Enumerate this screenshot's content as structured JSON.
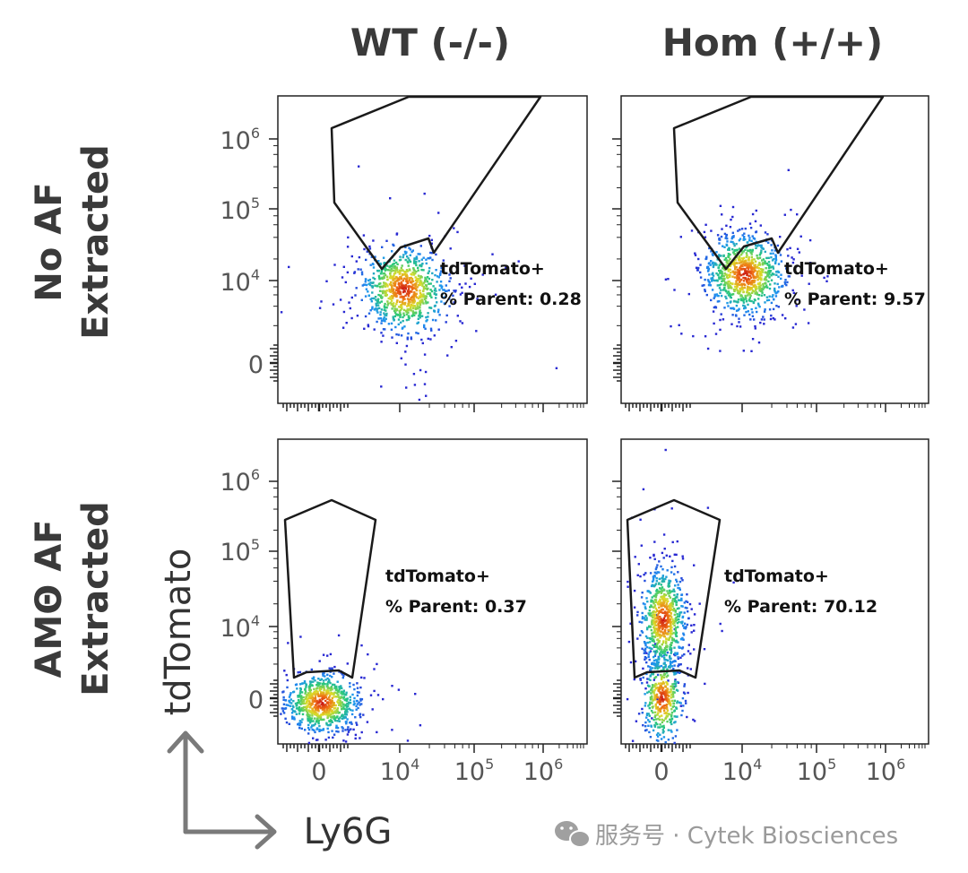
{
  "columns": [
    "WT (-/-)",
    "Hom (+/+)"
  ],
  "rows": [
    {
      "line1": "No AF",
      "line2": "Extracted"
    },
    {
      "line1": "AMΘ AF",
      "line2": "Extracted"
    }
  ],
  "axes": {
    "y_label": "tdTomato",
    "x_label": "Ly6G",
    "x_ticks": [
      {
        "label": "0",
        "exp": ""
      },
      {
        "label": "10",
        "exp": "4"
      },
      {
        "label": "10",
        "exp": "5"
      },
      {
        "label": "10",
        "exp": "6"
      }
    ],
    "y_ticks": [
      {
        "label": "10",
        "exp": "6"
      },
      {
        "label": "10",
        "exp": "5"
      },
      {
        "label": "10",
        "exp": "4"
      },
      {
        "label": "0",
        "exp": ""
      }
    ]
  },
  "watermark": {
    "text": "服务号 · Cytek Biosciences"
  },
  "colors": {
    "axis": "#222222",
    "gate": "#1a1a1a",
    "label": "#3a3a3a",
    "arrow": "#7a7a7a",
    "watermark": "#9a9a9a"
  },
  "chart_data": [
    {
      "type": "scatter",
      "subtype": "flow-cytometry-density-plot",
      "row": "No AF Extracted",
      "column": "WT (-/-)",
      "xlabel": "Ly6G",
      "ylabel": "tdTomato",
      "gate": {
        "population": "tdTomato+",
        "stat_label": "% Parent: 0.28",
        "percent_parent": 0.28
      },
      "populations": [
        {
          "name": "main cluster",
          "center_ly6g": "~1.5x10^4",
          "center_tdtomato": "~1x10^4"
        }
      ]
    },
    {
      "type": "scatter",
      "subtype": "flow-cytometry-density-plot",
      "row": "No AF Extracted",
      "column": "Hom (+/+)",
      "xlabel": "Ly6G",
      "ylabel": "tdTomato",
      "gate": {
        "population": "tdTomato+",
        "stat_label": "% Parent: 9.57",
        "percent_parent": 9.57
      },
      "populations": [
        {
          "name": "main cluster",
          "center_ly6g": "~1.5x10^4",
          "center_tdtomato": "~2x10^4"
        }
      ]
    },
    {
      "type": "scatter",
      "subtype": "flow-cytometry-density-plot",
      "row": "AMΘ AF Extracted",
      "column": "WT (-/-)",
      "xlabel": "Ly6G",
      "ylabel": "tdTomato",
      "gate": {
        "population": "tdTomato+",
        "stat_label": "% Parent: 0.37",
        "percent_parent": 0.37
      },
      "populations": [
        {
          "name": "main cluster",
          "center_ly6g": "~0",
          "center_tdtomato": "~0"
        }
      ]
    },
    {
      "type": "scatter",
      "subtype": "flow-cytometry-density-plot",
      "row": "AMΘ AF Extracted",
      "column": "Hom (+/+)",
      "xlabel": "Ly6G",
      "ylabel": "tdTomato",
      "gate": {
        "population": "tdTomato+",
        "stat_label": "% Parent: 70.12",
        "percent_parent": 70.12
      },
      "populations": [
        {
          "name": "tdTomato high",
          "center_ly6g": "~0",
          "center_tdtomato": "~1x10^4"
        },
        {
          "name": "tdTomato low",
          "center_ly6g": "~0",
          "center_tdtomato": "~0"
        }
      ]
    }
  ]
}
